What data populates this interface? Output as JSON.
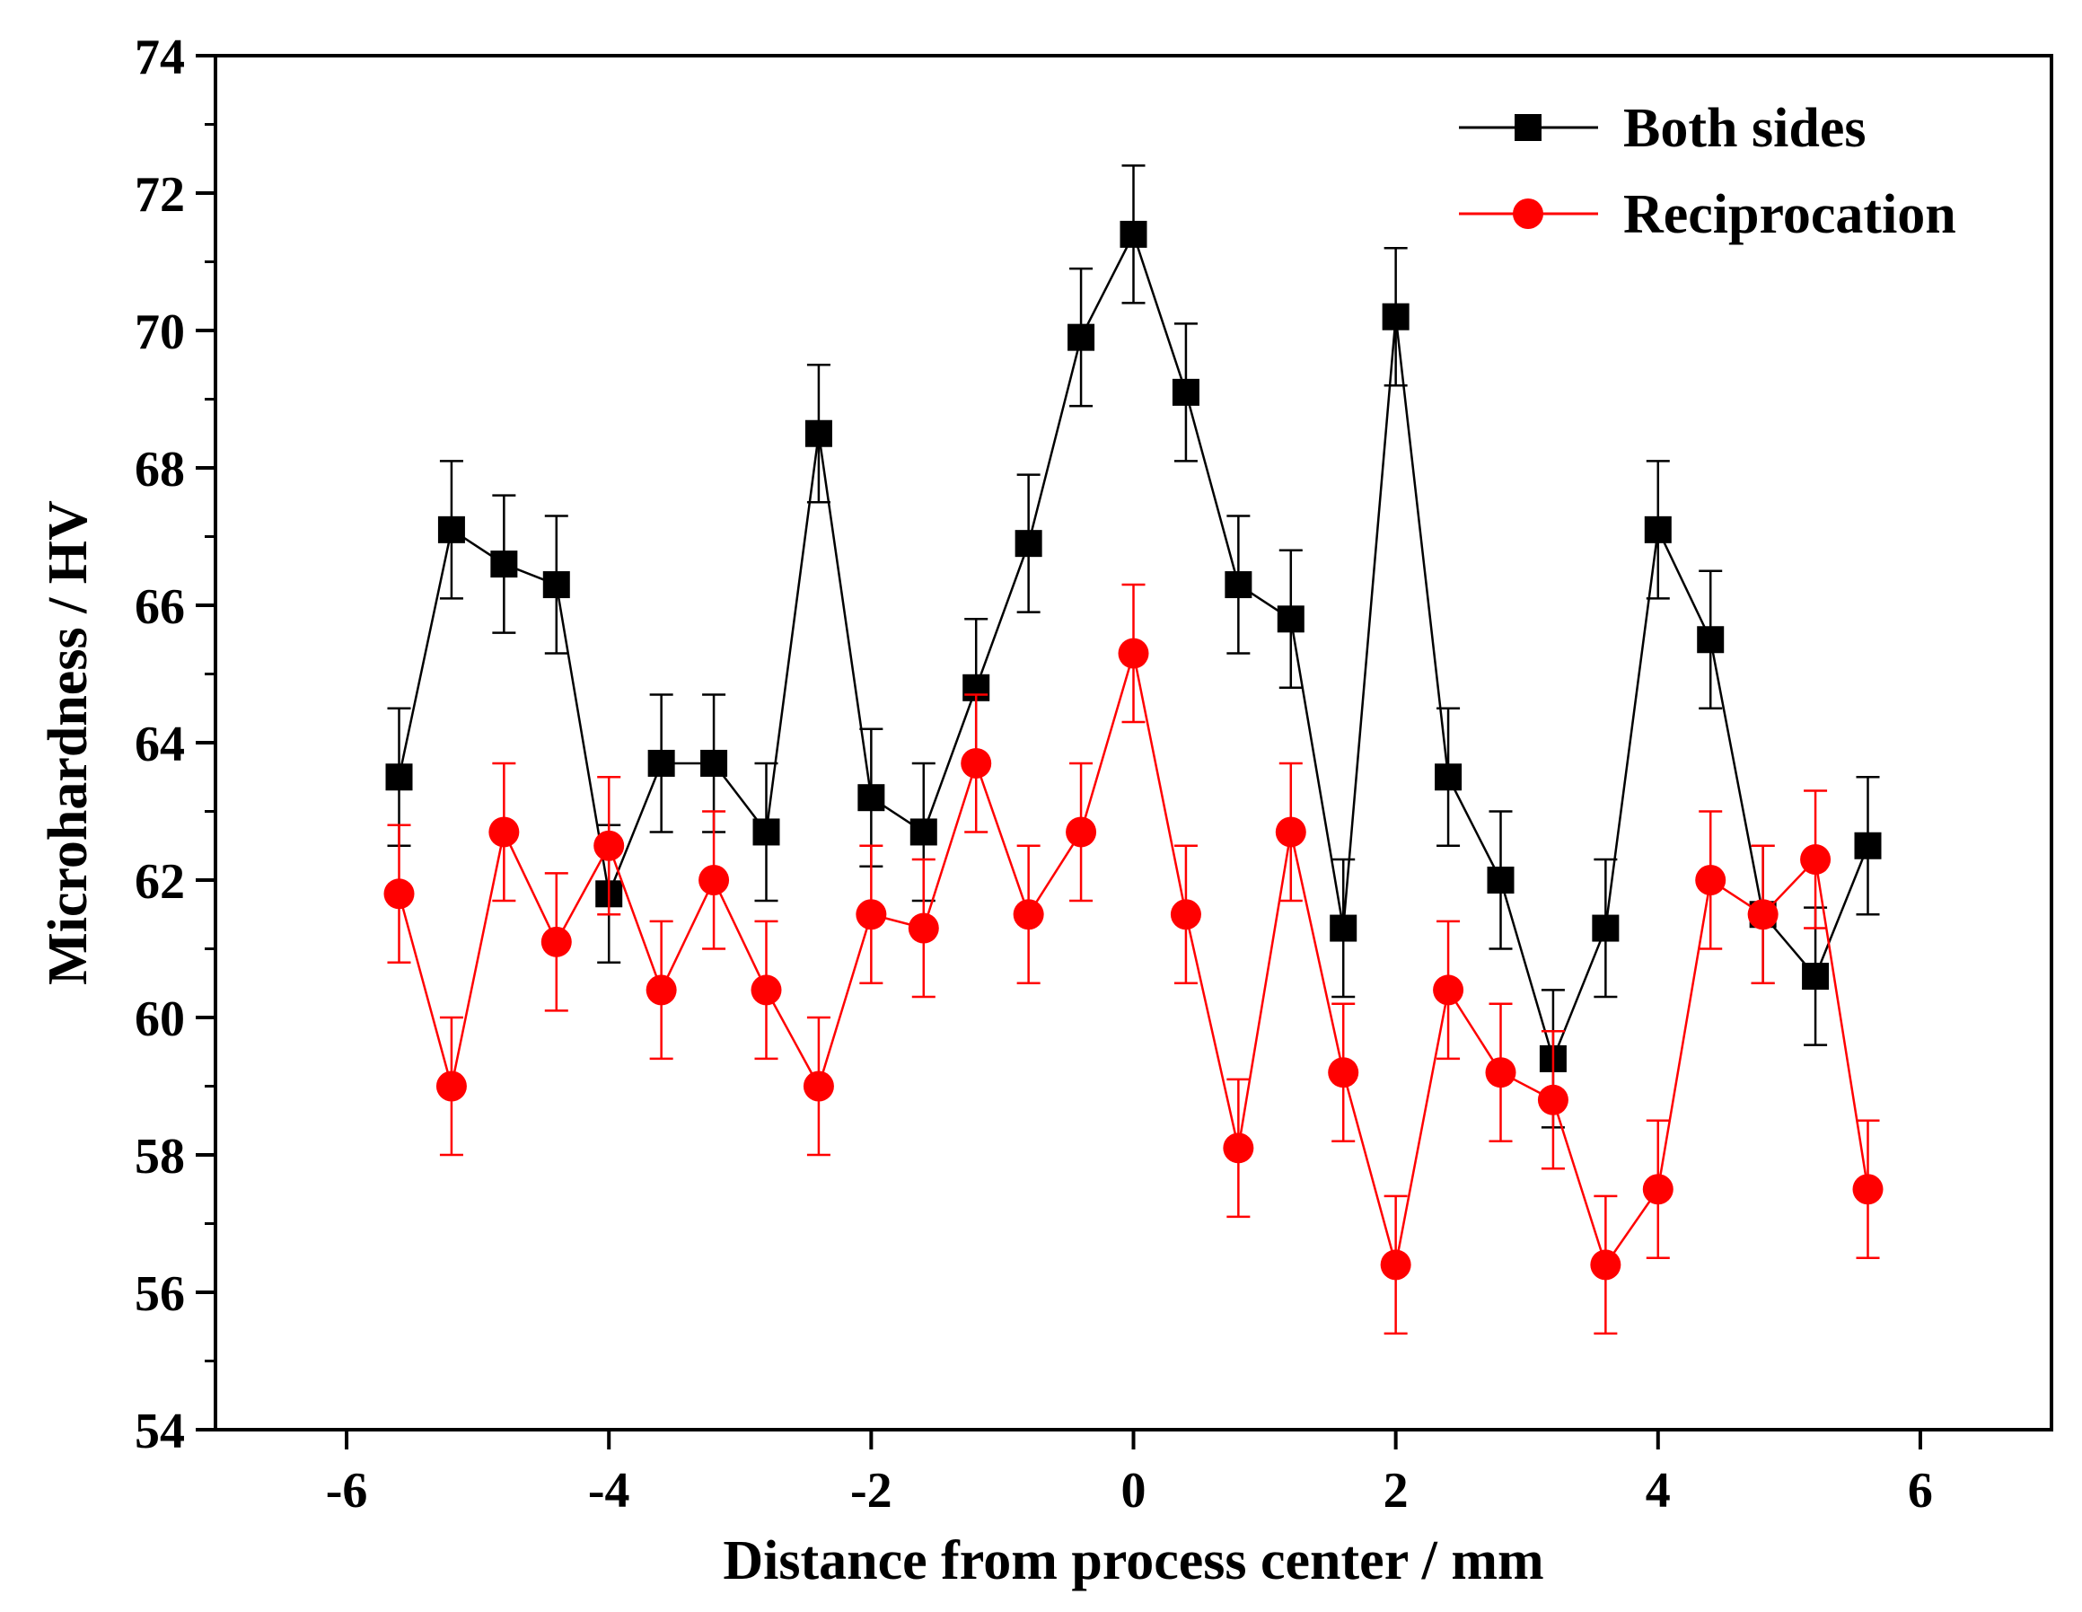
{
  "chart_data": {
    "type": "line",
    "title": "",
    "xlabel": "Distance from process center / mm",
    "ylabel": "Microhardness / HV",
    "xlim": [
      -7,
      7
    ],
    "ylim": [
      54,
      74
    ],
    "xticks": [
      -6,
      -4,
      -2,
      0,
      2,
      4,
      6
    ],
    "yticks": [
      54,
      56,
      58,
      60,
      62,
      64,
      66,
      68,
      70,
      72,
      74
    ],
    "x": [
      -5.6,
      -5.2,
      -4.8,
      -4.4,
      -4.0,
      -3.6,
      -3.2,
      -2.8,
      -2.4,
      -2.0,
      -1.6,
      -1.2,
      -0.8,
      -0.4,
      0.0,
      0.4,
      0.8,
      1.2,
      1.6,
      2.0,
      2.4,
      2.8,
      3.2,
      3.6,
      4.0,
      4.4,
      4.8,
      5.2,
      5.6
    ],
    "grid": false,
    "legend_position": "top-right",
    "series": [
      {
        "name": "Both sides",
        "color": "#000000",
        "marker": "square",
        "values": [
          63.5,
          67.1,
          66.6,
          66.3,
          61.8,
          63.7,
          63.7,
          62.7,
          68.5,
          63.2,
          62.7,
          64.8,
          66.9,
          69.9,
          71.4,
          69.1,
          66.3,
          65.8,
          61.3,
          70.2,
          63.5,
          62.0,
          59.4,
          61.3,
          67.1,
          65.5,
          61.5,
          60.6,
          62.5
        ],
        "error": 1.0
      },
      {
        "name": "Reciprocation",
        "color": "#ff0000",
        "marker": "circle",
        "values": [
          61.8,
          59.0,
          62.7,
          61.1,
          62.5,
          60.4,
          62.0,
          60.4,
          59.0,
          61.5,
          61.3,
          63.7,
          61.5,
          62.7,
          65.3,
          61.5,
          58.1,
          62.7,
          59.2,
          56.4,
          60.4,
          59.2,
          58.8,
          56.4,
          57.5,
          62.0,
          61.5,
          62.3,
          57.5
        ],
        "error": 1.0
      }
    ]
  }
}
